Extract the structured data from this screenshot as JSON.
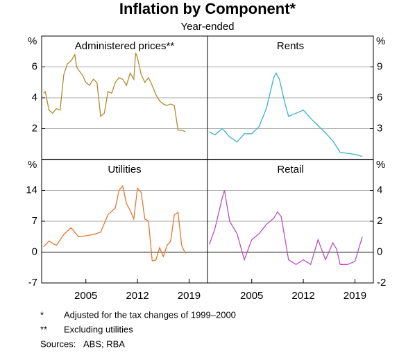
{
  "title": "Inflation by Component*",
  "subtitle": "Year-ended",
  "notes": [
    {
      "symbol": "*",
      "text": "Adjusted for the tax changes of 1999–2000"
    },
    {
      "symbol": "**",
      "text": "Excluding utilities"
    }
  ],
  "sources": {
    "label": "Sources:",
    "text": "ABS; RBA"
  },
  "chart_data": [
    {
      "type": "line",
      "title": "Administered prices**",
      "y_label": "%",
      "axis_side": "left",
      "xlim": [
        1999,
        2021.5
      ],
      "ylim": [
        0,
        8
      ],
      "yticks": [
        2,
        4,
        6
      ],
      "grid": true,
      "x": [
        1999.25,
        1999.5,
        2000,
        2000.5,
        2001,
        2001.5,
        2002,
        2002.5,
        2003,
        2003.5,
        2003.75,
        2004,
        2004.5,
        2005,
        2005.5,
        2006,
        2006.5,
        2007,
        2007.5,
        2008,
        2008.5,
        2009,
        2009.5,
        2010,
        2010.5,
        2011,
        2011.5,
        2011.75,
        2012,
        2012.5,
        2013,
        2013.5,
        2014,
        2014.5,
        2015,
        2015.5,
        2016,
        2016.5,
        2017,
        2017.5,
        2018,
        2018.5
      ],
      "series": [
        {
          "name": "Administered prices",
          "color": "#b08a2e",
          "values": [
            4.3,
            4.4,
            3.2,
            3.0,
            3.3,
            3.2,
            5.5,
            6.2,
            6.4,
            6.8,
            6.0,
            5.8,
            5.5,
            5.0,
            4.8,
            5.2,
            5.0,
            2.8,
            3.0,
            4.4,
            4.3,
            5.0,
            5.3,
            5.2,
            4.8,
            5.6,
            5.2,
            6.9,
            6.6,
            5.5,
            5.0,
            5.3,
            4.8,
            4.2,
            3.8,
            3.6,
            3.5,
            3.6,
            3.5,
            1.9,
            1.9,
            1.8
          ]
        }
      ]
    },
    {
      "type": "line",
      "title": "Rents",
      "y_label": "%",
      "axis_side": "right",
      "xlim": [
        1999,
        2021.5
      ],
      "ylim": [
        0,
        12
      ],
      "yticks": [
        3,
        6,
        9
      ],
      "grid": true,
      "x": [
        1999.25,
        2000,
        2001,
        2002,
        2003,
        2004,
        2005,
        2006,
        2007,
        2007.5,
        2008,
        2008.3,
        2008.75,
        2009.5,
        2010,
        2011,
        2012,
        2013,
        2014,
        2015,
        2016,
        2017,
        2018,
        2019,
        2020
      ],
      "series": [
        {
          "name": "Rents",
          "color": "#3ab0c9",
          "values": [
            2.7,
            2.4,
            3.0,
            2.2,
            1.7,
            2.5,
            2.5,
            3.2,
            5.0,
            6.5,
            8.0,
            8.4,
            7.8,
            5.5,
            4.2,
            4.5,
            4.8,
            4.0,
            3.3,
            2.6,
            1.8,
            0.7,
            0.6,
            0.5,
            0.3
          ]
        }
      ]
    },
    {
      "type": "line",
      "title": "Utilities",
      "y_label": "%",
      "axis_side": "left",
      "xlim": [
        1999,
        2021.5
      ],
      "ylim": [
        -7,
        21
      ],
      "yticks": [
        -7,
        0,
        7,
        14
      ],
      "grid": true,
      "xticks": [
        2005,
        2012,
        2019
      ],
      "x": [
        1999.25,
        2000,
        2001,
        2002,
        2003,
        2004,
        2005,
        2006,
        2007,
        2008,
        2009,
        2009.5,
        2010,
        2010.5,
        2011,
        2011.5,
        2012,
        2012.5,
        2013,
        2013.5,
        2014,
        2014.5,
        2015,
        2015.5,
        2016,
        2016.5,
        2017,
        2017.5,
        2018,
        2018.5
      ],
      "series": [
        {
          "name": "Utilities",
          "color": "#e8762c",
          "values": [
            1.2,
            2.5,
            1.5,
            4.0,
            5.5,
            3.5,
            3.7,
            4.0,
            4.5,
            8.5,
            10,
            14,
            15,
            11,
            9.5,
            7.5,
            14.5,
            13.5,
            7.5,
            7.0,
            -2.0,
            -1.8,
            1.0,
            -1.0,
            1.5,
            2.5,
            8.5,
            9.0,
            1.5,
            -0.3
          ]
        }
      ]
    },
    {
      "type": "line",
      "title": "Retail",
      "y_label": "%",
      "axis_side": "right",
      "xlim": [
        1999,
        2021.5
      ],
      "ylim": [
        -2,
        6
      ],
      "yticks": [
        -2,
        0,
        2,
        4
      ],
      "grid": true,
      "xticks": [
        2005,
        2012,
        2019
      ],
      "x": [
        1999.25,
        2000,
        2001,
        2001.3,
        2002,
        2003,
        2004,
        2005,
        2006,
        2007,
        2008,
        2008.5,
        2009,
        2010,
        2011,
        2012,
        2013,
        2014,
        2015,
        2016,
        2016.5,
        2017,
        2018,
        2019,
        2020
      ],
      "series": [
        {
          "name": "Retail",
          "color": "#b94fc4",
          "values": [
            0.5,
            1.5,
            3.5,
            4.0,
            2.0,
            1.2,
            -0.5,
            0.8,
            1.2,
            1.8,
            2.2,
            2.6,
            2.3,
            -0.5,
            -0.8,
            -0.5,
            -0.8,
            0.8,
            -0.5,
            0.6,
            0.2,
            -0.8,
            -0.8,
            -0.6,
            1.0
          ]
        }
      ]
    }
  ]
}
